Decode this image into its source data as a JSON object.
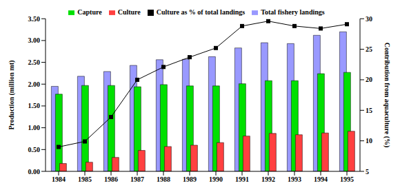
{
  "chart_data": {
    "type": "bar",
    "categories": [
      "1984",
      "1985",
      "1986",
      "1987",
      "1988",
      "1989",
      "1990",
      "1991",
      "1992",
      "1993",
      "1994",
      "1995"
    ],
    "y_label": "Production (million mt)",
    "y2_label": "Contribution from aquaculture (%)",
    "ylim": [
      0,
      3.5
    ],
    "yticks": [
      {
        "value": 0,
        "label": "0.00"
      },
      {
        "value": 0.5,
        "label": "0.50"
      },
      {
        "value": 1,
        "label": "1.00"
      },
      {
        "value": 1.5,
        "label": "1.50"
      },
      {
        "value": 2,
        "label": "2.00"
      },
      {
        "value": 2.5,
        "label": "2.50"
      },
      {
        "value": 3,
        "label": "3.00"
      },
      {
        "value": 3.5,
        "label": "3.50"
      }
    ],
    "y2lim": [
      5,
      30
    ],
    "y2ticks": [
      5,
      10,
      15,
      20,
      25,
      30
    ],
    "grid": false,
    "legend": "top",
    "series": [
      {
        "name": "Total fishery landings",
        "type": "bar",
        "color": "#9999ff",
        "values": [
          1.95,
          2.18,
          2.29,
          2.43,
          2.56,
          2.57,
          2.63,
          2.83,
          2.95,
          2.93,
          3.12,
          3.2
        ]
      },
      {
        "name": "Capture",
        "type": "bar",
        "color": "#00e000",
        "values": [
          1.77,
          1.97,
          1.97,
          1.94,
          1.99,
          1.96,
          1.96,
          2.01,
          2.08,
          2.08,
          2.24,
          2.27
        ]
      },
      {
        "name": "Culture",
        "type": "bar",
        "color": "#ff4040",
        "values": [
          0.18,
          0.21,
          0.32,
          0.48,
          0.57,
          0.6,
          0.66,
          0.81,
          0.87,
          0.84,
          0.88,
          0.92
        ]
      },
      {
        "name": "Culture as % of total landings",
        "type": "line",
        "axis": "y2",
        "color": "#000000",
        "marker": "square",
        "values": [
          9.0,
          9.9,
          13.9,
          20.0,
          22.1,
          23.7,
          25.2,
          28.8,
          29.6,
          28.8,
          28.4,
          29.1
        ]
      }
    ]
  }
}
